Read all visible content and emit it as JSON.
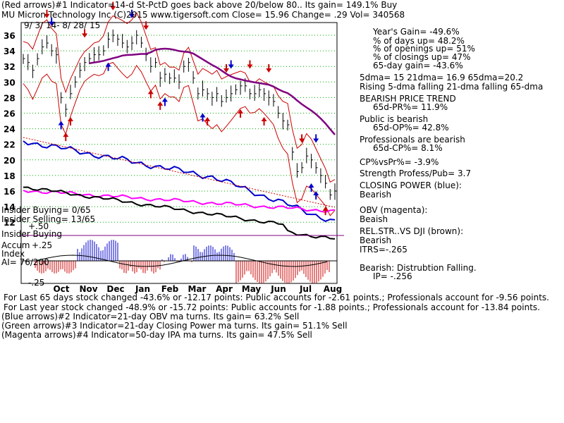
{
  "header": {
    "line1": "(Red arrows)#1 Indicator=14-d St-PctD goes back above 20/below 80.. Its gain= 149.1% Buy",
    "line2": "MU   Micron Technology Inc  (C)2015 www.tigersoft.com     Close=  15.96  Change= .29 Vol=  340568",
    "date_range": "9/ 3/ 14-  8/ 28/ 15"
  },
  "stats": [
    "Year's Gain= -49.6%",
    "% of days up= 48.2%",
    "% of openings up= 51%",
    "% of closings up= 47%",
    "65-day gain= -43.6%",
    "5dma= 15 21dma= 16.9 65dma=20.2",
    "Rising 5-dma falling 21-dma falling 65-dma",
    "BEARISH PRICE TREND",
    "65d-PR%= 11.9%",
    "Public is bearish",
    "65d-OP%= 42.8%",
    "Professionals are bearish",
    "65d-CP%= 8.1%",
    "CP%vsPr%= -3.9%",
    "Strength Profess/Pub= 3.7",
    "CLOSING POWER (blue):",
    "Bearish",
    "OBV (magenta):",
    "Beaish",
    "REL.STR..VS DJI (brown):",
    "Bearish",
    "ITRS=-.265",
    "Bearish: Distrubtion Falling.",
    "IP= -.256"
  ],
  "insider": {
    "buying_stat": "Insider Buying= 0/65",
    "selling_stat": "Insider Selling= 13/65",
    "buying_label": "Insider Buying",
    "accum_label": "Accum",
    "index_label": "Index",
    "ai_stat": "AI= 76/200"
  },
  "panel_ticks": {
    "p50": "+.50",
    "p25": "+.25",
    "m25": "-.25"
  },
  "footer": [
    "For Last 65 days stock changed -43.6% or -12.17 points:  Public accounts for -2.61 points.;  Professionals account for -9.56 points.",
    "For Last year stock changed -48.9% or -15.72 points:  Public accounts for -1.88 points.;  Professionals account for -13.84 points.",
    "(Blue arrows)#2 Indicator=21-day OBV ma turns. Its gain= 63.2% Sell",
    "(Green arrows)#3 Indicator=21-day Closing Power ma turns. Its gain= 51.1% Sell",
    "(Magenta arrows)#4 Indicator=50-day IPA ma turns. Its gain= 47.5% Sell"
  ],
  "colors": {
    "price_bars": "#000000",
    "band": "#cc0000",
    "ma65": "#800080",
    "closing_power": "#0000cc",
    "obv": "#ff00ff",
    "rel_strength": "#000000",
    "trend": "#cc0000",
    "grid": "#00aa00",
    "accum_pos": "#0000cc",
    "accum_neg": "#cc0000",
    "up_arrow_red": "#cc0000",
    "down_arrow_red": "#cc0000",
    "arrow_blue": "#0000cc"
  },
  "chart_data": {
    "type": "line",
    "ylim": [
      10,
      37
    ],
    "y_ticks": [
      12,
      14,
      16,
      18,
      20,
      22,
      24,
      26,
      28,
      30,
      32,
      34,
      36
    ],
    "x_tick_labels": [
      "Oct",
      "Nov",
      "Dec",
      "Jan",
      "Feb",
      "Mar",
      "Apr",
      "May",
      "Jun",
      "Jul",
      "Aug"
    ],
    "close": [
      33,
      32.5,
      31.5,
      33,
      34.5,
      35,
      34,
      33.5,
      28,
      26.5,
      28.5,
      30,
      31.5,
      32.5,
      33,
      33.5,
      33.5,
      34,
      35.5,
      36,
      35.5,
      35,
      34.5,
      35,
      36,
      35,
      33.5,
      32,
      32.5,
      30.5,
      31,
      30.5,
      30.5,
      30,
      32,
      32.5,
      30.5,
      28.5,
      29,
      28.5,
      28,
      28.5,
      27.5,
      28,
      28.5,
      29,
      29.5,
      29.5,
      28.5,
      28.5,
      29,
      28.5,
      28,
      27.5,
      26,
      25,
      24.5,
      21,
      18.5,
      19,
      20.5,
      20,
      19,
      18,
      17,
      15.5,
      16
    ]
  }
}
